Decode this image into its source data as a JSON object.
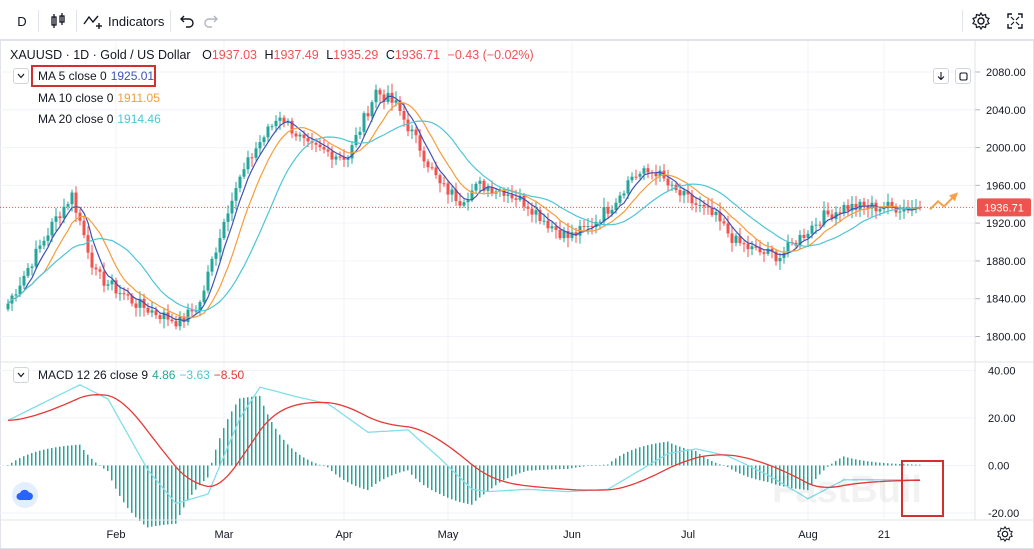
{
  "toolbar": {
    "interval": "D",
    "indicators_label": "Indicators"
  },
  "symbol": {
    "title": "XAUUSD · 1D · Gold / US Dollar",
    "o_label": "O",
    "o": "1937.03",
    "h_label": "H",
    "h": "1937.49",
    "l_label": "L",
    "l": "1935.29",
    "c_label": "C",
    "c": "1936.71",
    "change": "−0.43 (−0.02%)"
  },
  "legends": {
    "ma5_label": "MA 5 close 0",
    "ma5_value": "1925.01",
    "ma10_label": "MA 10 close 0",
    "ma10_value": "1911.05",
    "ma20_label": "MA 20 close 0",
    "ma20_value": "1914.46",
    "macd_label": "MACD 12 26 close 9",
    "macd_hist": "4.86",
    "macd_line": "−3.63",
    "macd_signal": "−8.50"
  },
  "price_badge": "1936.71",
  "watermark": "FastBull",
  "colors": {
    "up": "#26a69a",
    "down": "#ef5350",
    "ma5": "#3f51b5",
    "ma10": "#f59d3a",
    "ma20": "#4dc5d6",
    "macd_line": "#80deea",
    "macd_signal": "#e53935",
    "highlight": "#d32f2f",
    "arrow": "#f5a24a"
  },
  "chart_data": [
    {
      "type": "candlestick",
      "title": "XAUUSD · 1D · Gold / US Dollar",
      "x_labels": [
        "Feb",
        "Mar",
        "Apr",
        "May",
        "Jun",
        "Jul",
        "Aug",
        "21"
      ],
      "y_ticks": [
        1800,
        1840,
        1880,
        1920,
        1960,
        2000,
        2040,
        2080
      ],
      "ylim": [
        1770,
        2090
      ],
      "anchors": {
        "days": [
          0,
          12,
          16,
          22,
          27,
          32,
          37,
          43,
          48,
          51,
          56,
          62,
          68,
          75,
          80,
          85,
          92,
          97,
          103,
          108,
          113,
          118,
          124,
          130,
          135,
          140,
          145,
          151,
          156,
          162,
          166,
          170,
          177,
          182,
          187,
          193,
          198,
          203,
          209,
          215,
          219,
          223,
          226,
          228
        ],
        "close": [
          1835,
          1925,
          1950,
          1865,
          1850,
          1835,
          1825,
          1815,
          1835,
          1880,
          1950,
          2000,
          2035,
          2000,
          1995,
          1990,
          2060,
          2045,
          2000,
          1960,
          1945,
          1960,
          1955,
          1940,
          1920,
          1905,
          1915,
          1940,
          1970,
          1975,
          1955,
          1945,
          1925,
          1900,
          1890,
          1885,
          1905,
          1925,
          1937,
          1937,
          1937,
          1937,
          1937,
          1937
        ]
      },
      "ma": [
        "MA 5",
        "MA 10",
        "MA 20"
      ],
      "ylabel": "",
      "xlabel": ""
    },
    {
      "type": "macd",
      "title": "MACD 12 26 close 9",
      "y_ticks": [
        40,
        20,
        0,
        -20
      ],
      "ylim": [
        -22,
        42
      ],
      "anchors": {
        "days": [
          0,
          18,
          25,
          35,
          42,
          50,
          58,
          63,
          72,
          80,
          90,
          100,
          108,
          116,
          120,
          130,
          140,
          150,
          165,
          172,
          180,
          190,
          200,
          209
        ],
        "macd": [
          19,
          34,
          28,
          -2,
          -16,
          -12,
          20,
          33,
          29,
          26,
          14,
          15,
          3,
          -10,
          -11,
          -10,
          -11,
          -10,
          5,
          7,
          4,
          -4,
          -14,
          -6
        ]
      }
    }
  ]
}
